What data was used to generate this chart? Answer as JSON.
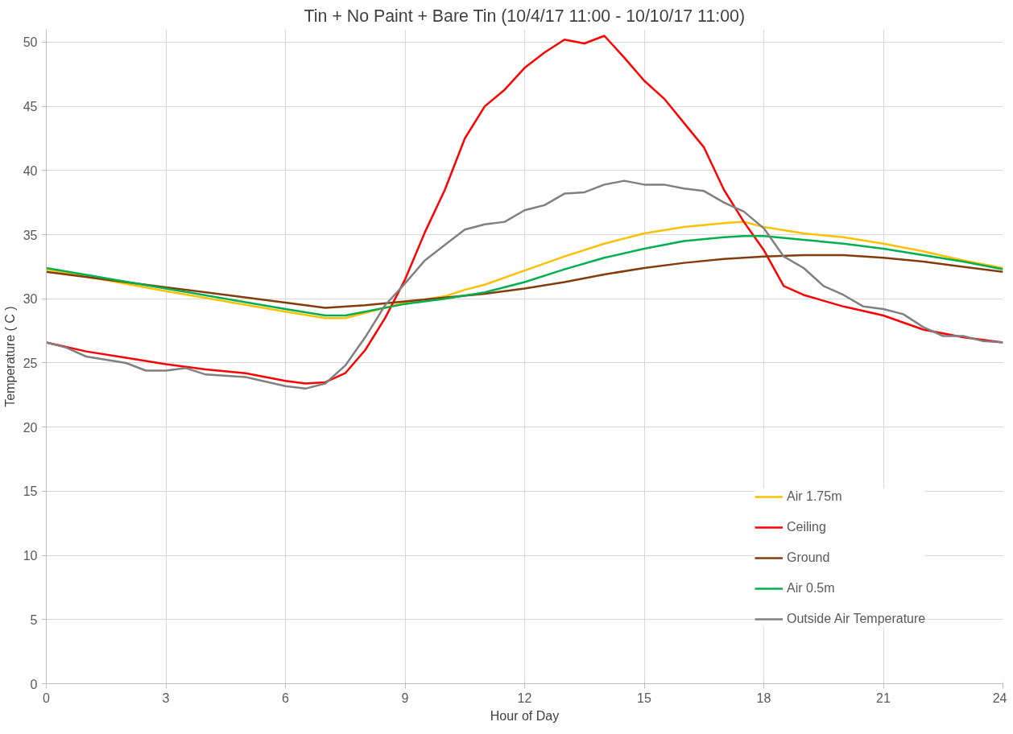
{
  "chart_data": {
    "type": "line",
    "title": "Tin + No Paint + Bare Tin (10/4/17 11:00 - 10/10/17 11:00)",
    "xlabel": "Hour of Day",
    "ylabel": "Temperature ( C )",
    "xlim": [
      0,
      24
    ],
    "xticks": [
      0,
      3,
      6,
      9,
      12,
      15,
      18,
      21,
      24
    ],
    "ylim": [
      0,
      51
    ],
    "yticks": [
      0,
      5,
      10,
      15,
      20,
      25,
      30,
      35,
      40,
      45,
      50
    ],
    "grid": true,
    "legend": "right",
    "marker": "none",
    "line_style": "solid",
    "series": [
      {
        "name": "Air 1.75m",
        "color": "#ffc000",
        "x": [
          0,
          3,
          6,
          7,
          7.5,
          8,
          9,
          10,
          10.5,
          11,
          12,
          13,
          14,
          15,
          16,
          17,
          17.5,
          18,
          19,
          20,
          21,
          22,
          23,
          24
        ],
        "values": [
          32.3,
          30.6,
          29,
          28.5,
          28.5,
          28.9,
          29.7,
          30.2,
          30.7,
          31.1,
          32.2,
          33.3,
          34.3,
          35.1,
          35.6,
          35.9,
          36,
          35.6,
          35.1,
          34.8,
          34.3,
          33.7,
          33,
          32.4
        ]
      },
      {
        "name": "Ceiling",
        "color": "#ff0000",
        "x": [
          0,
          1,
          2,
          3,
          4,
          5,
          6,
          6.5,
          7,
          7.5,
          8,
          8.5,
          9,
          9.5,
          10,
          10.5,
          11,
          11.5,
          12,
          12.5,
          13,
          13.5,
          14,
          14.5,
          15,
          15.5,
          16,
          16.5,
          17,
          17.5,
          18,
          18.5,
          19,
          20,
          21,
          22,
          23,
          24
        ],
        "values": [
          26.6,
          25.9,
          25.4,
          24.9,
          24.5,
          24.2,
          23.6,
          23.4,
          23.5,
          24.2,
          26,
          28.5,
          31.5,
          35.2,
          38.5,
          42.5,
          45,
          46.3,
          48,
          49.2,
          50.2,
          49.9,
          50.5,
          48.8,
          47,
          45.6,
          43.7,
          41.8,
          38.5,
          36,
          33.8,
          31,
          30.3,
          29.4,
          28.7,
          27.6,
          27,
          26.6
        ]
      },
      {
        "name": "Ground",
        "color": "#843c0c",
        "x": [
          0,
          3,
          6,
          7,
          8,
          9,
          10,
          11,
          12,
          13,
          14,
          15,
          16,
          17,
          18,
          19,
          20,
          21,
          22,
          23,
          24
        ],
        "values": [
          32.1,
          30.9,
          29.7,
          29.3,
          29.5,
          29.8,
          30.1,
          30.4,
          30.8,
          31.3,
          31.9,
          32.4,
          32.8,
          33.1,
          33.3,
          33.4,
          33.4,
          33.2,
          32.9,
          32.5,
          32.1
        ]
      },
      {
        "name": "Air 0.5m",
        "color": "#00b050",
        "x": [
          0,
          3,
          6,
          7,
          7.5,
          8,
          9,
          10,
          11,
          12,
          13,
          14,
          15,
          16,
          17,
          17.5,
          18,
          19,
          20,
          21,
          22,
          23,
          24
        ],
        "values": [
          32.4,
          30.8,
          29.2,
          28.7,
          28.7,
          29,
          29.6,
          30,
          30.5,
          31.3,
          32.3,
          33.2,
          33.9,
          34.5,
          34.8,
          34.9,
          34.9,
          34.6,
          34.3,
          33.9,
          33.4,
          32.9,
          32.3
        ]
      },
      {
        "name": "Outside Air Temperature",
        "color": "#808080",
        "x": [
          0,
          0.5,
          1,
          2,
          2.5,
          3,
          3.5,
          4,
          5,
          6,
          6.5,
          7,
          7.5,
          8,
          8.5,
          9,
          9.5,
          10,
          10.5,
          11,
          11.5,
          12,
          12.5,
          13,
          13.5,
          14,
          14.5,
          15,
          15.5,
          16,
          16.5,
          17,
          17.5,
          18,
          18.5,
          19,
          19.5,
          20,
          20.5,
          21,
          21.5,
          22,
          22.5,
          23,
          23.5,
          24
        ],
        "values": [
          26.6,
          26.2,
          25.5,
          25,
          24.4,
          24.4,
          24.6,
          24.1,
          23.9,
          23.2,
          23,
          23.4,
          24.8,
          27,
          29.5,
          31.2,
          33,
          34.2,
          35.4,
          35.8,
          36,
          36.9,
          37.3,
          38.2,
          38.3,
          38.9,
          39.2,
          38.9,
          38.9,
          38.6,
          38.4,
          37.5,
          36.8,
          35.5,
          33.3,
          32.4,
          31,
          30.3,
          29.4,
          29.2,
          28.8,
          27.8,
          27.1,
          27.1,
          26.7,
          26.6
        ]
      }
    ]
  }
}
